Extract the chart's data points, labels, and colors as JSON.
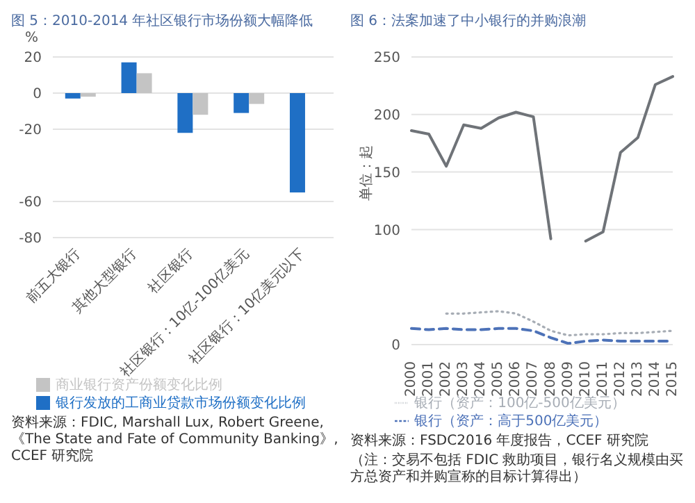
{
  "chart_data": [
    {
      "type": "bar",
      "title": "图 5：2010-2014 年社区银行市场份额大幅降低",
      "ylabel": "%",
      "categories": [
        "前五大银行",
        "其他大型银行",
        "社区银行",
        "社区银行：10亿-100亿美元",
        "社区银行：10亿美元以下"
      ],
      "series": [
        {
          "name": "银行发放的工商业贷款市场份额变化比例",
          "color": "#1f6fc5",
          "values": [
            -3,
            17,
            -22,
            -11,
            -55
          ]
        },
        {
          "name": "商业银行资产份额变化比例",
          "color": "#c4c4c4",
          "values": [
            -2,
            11,
            -12,
            -6,
            null
          ]
        }
      ],
      "ylim": [
        -80,
        20
      ],
      "yticks": [
        20,
        0,
        -20,
        -60,
        -80
      ],
      "grid": "y",
      "legend": "bottom",
      "annotations": [
        "资料来源：FDIC, Marshall Lux, Robert Greene,《The State and Fate of Community Banking》, CCEF 研究院"
      ]
    },
    {
      "type": "line",
      "title": "图 6：法案加速了中小银行的并购浪潮",
      "ylabel": "单位：起",
      "categories": [
        "2000",
        "2001",
        "2002",
        "2003",
        "2004",
        "2005",
        "2006",
        "2007",
        "2008",
        "2009",
        "2010",
        "2011",
        "2012",
        "2013",
        "2014",
        "2015"
      ],
      "series": [
        {
          "color": "#6f7378",
          "line_style": "solid",
          "values": [
            186,
            183,
            155,
            191,
            188,
            197,
            202,
            198,
            92,
            null,
            90,
            98,
            167,
            180,
            226,
            233
          ]
        },
        {
          "name": "银行（资产：100亿-500亿美元）",
          "color": "#a7adb5",
          "line_style": "dotted",
          "values": [
            null,
            null,
            27,
            27,
            28,
            29,
            27,
            20,
            12,
            8,
            9,
            9,
            10,
            10,
            11,
            12
          ]
        },
        {
          "name": "银行（资产：高于500亿美元）",
          "color": "#4d72b8",
          "line_style": "dashed",
          "values": [
            14,
            13,
            14,
            13,
            13,
            14,
            14,
            12,
            6,
            1,
            3,
            4,
            3,
            3,
            3,
            3
          ]
        }
      ],
      "ylim": [
        0,
        250
      ],
      "yticks": [
        0,
        100,
        150,
        200,
        250
      ],
      "grid": "y",
      "legend": "bottom",
      "marker": "none",
      "annotations": [
        "资料来源：FSDC2016 年度报告，CCEF 研究院",
        "（注：交易不包括 FDIC 救助项目，银行名义规模由买方总资产和并购宣称的目标计算得出）"
      ]
    }
  ]
}
